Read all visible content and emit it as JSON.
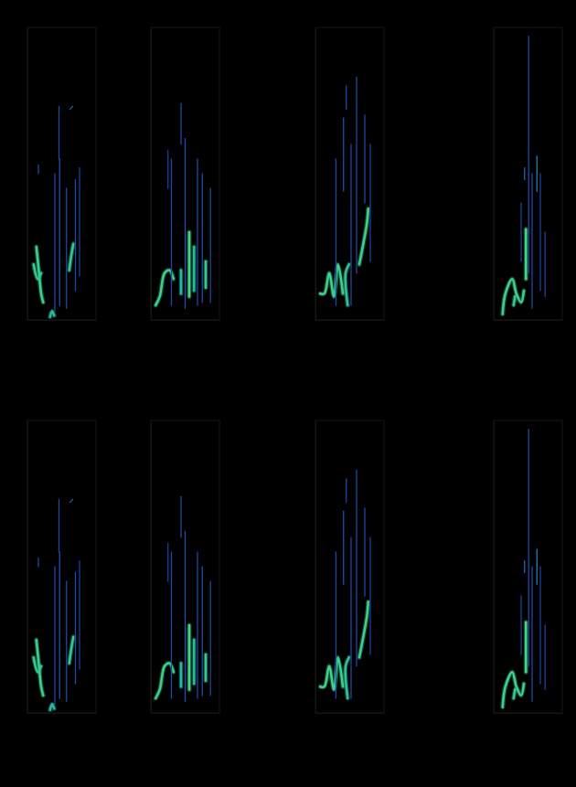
{
  "chart_data": [
    {
      "type": "spectrogram",
      "tick_labels": false,
      "xlim": [
        0,
        1
      ],
      "ylim": [
        0,
        1
      ],
      "zlim": [
        0,
        1
      ],
      "series": [
        {
          "x": [
            0.13,
            0.17,
            0.2,
            0.23
          ],
          "values": [
            0.25,
            0.16,
            0.09,
            0.06
          ],
          "intensity": 0.85
        },
        {
          "x": [
            0.09,
            0.15,
            0.2
          ],
          "values": [
            0.19,
            0.14,
            0.16
          ],
          "intensity": 0.8
        },
        {
          "x": [
            0.61,
            0.64,
            0.67
          ],
          "values": [
            0.17,
            0.22,
            0.26
          ],
          "intensity": 0.8
        },
        {
          "x": [
            0.33,
            0.36,
            0.39
          ],
          "values": [
            0.01,
            0.03,
            0.015
          ],
          "intensity": 0.7
        },
        {
          "x": [
            0.4,
            0.4
          ],
          "values": [
            0.03,
            0.5
          ],
          "intensity": 0.3
        },
        {
          "x": [
            0.47,
            0.47
          ],
          "values": [
            0.05,
            0.55
          ],
          "intensity": 0.35
        },
        {
          "x": [
            0.57,
            0.57
          ],
          "values": [
            0.04,
            0.45
          ],
          "intensity": 0.3
        },
        {
          "x": [
            0.7,
            0.7
          ],
          "values": [
            0.1,
            0.48
          ],
          "intensity": 0.3
        },
        {
          "x": [
            0.76,
            0.76
          ],
          "values": [
            0.15,
            0.52
          ],
          "intensity": 0.25
        },
        {
          "x": [
            0.46,
            0.46
          ],
          "values": [
            0.55,
            0.73
          ],
          "intensity": 0.3
        },
        {
          "x": [
            0.62,
            0.66
          ],
          "values": [
            0.72,
            0.73
          ],
          "intensity": 0.4
        },
        {
          "x": [
            0.16,
            0.16
          ],
          "values": [
            0.5,
            0.53
          ],
          "intensity": 0.3
        }
      ]
    },
    {
      "type": "spectrogram",
      "tick_labels": false,
      "xlim": [
        0,
        1
      ],
      "ylim": [
        0,
        1
      ],
      "zlim": [
        0,
        1
      ],
      "series": [
        {
          "x": [
            0.07,
            0.13,
            0.2,
            0.27,
            0.33
          ],
          "values": [
            0.05,
            0.08,
            0.16,
            0.17,
            0.14
          ],
          "intensity": 0.85
        },
        {
          "x": [
            0.56,
            0.56
          ],
          "values": [
            0.08,
            0.3
          ],
          "intensity": 0.9
        },
        {
          "x": [
            0.63,
            0.63
          ],
          "values": [
            0.1,
            0.25
          ],
          "intensity": 0.7
        },
        {
          "x": [
            0.8,
            0.8
          ],
          "values": [
            0.11,
            0.2
          ],
          "intensity": 0.8
        },
        {
          "x": [
            0.44,
            0.44
          ],
          "values": [
            0.09,
            0.17
          ],
          "intensity": 0.7
        },
        {
          "x": [
            0.3,
            0.3
          ],
          "values": [
            0.05,
            0.55
          ],
          "intensity": 0.3
        },
        {
          "x": [
            0.5,
            0.5
          ],
          "values": [
            0.04,
            0.62
          ],
          "intensity": 0.35
        },
        {
          "x": [
            0.68,
            0.68
          ],
          "values": [
            0.05,
            0.55
          ],
          "intensity": 0.3
        },
        {
          "x": [
            0.75,
            0.75
          ],
          "values": [
            0.06,
            0.5
          ],
          "intensity": 0.3
        },
        {
          "x": [
            0.87,
            0.87
          ],
          "values": [
            0.06,
            0.45
          ],
          "intensity": 0.25
        },
        {
          "x": [
            0.44,
            0.44
          ],
          "values": [
            0.6,
            0.74
          ],
          "intensity": 0.3
        },
        {
          "x": [
            0.25,
            0.25
          ],
          "values": [
            0.45,
            0.58
          ],
          "intensity": 0.25
        }
      ]
    },
    {
      "type": "spectrogram",
      "tick_labels": false,
      "xlim": [
        0,
        1
      ],
      "ylim": [
        0,
        1
      ],
      "zlim": [
        0,
        1
      ],
      "series": [
        {
          "x": [
            0.07,
            0.13,
            0.2,
            0.27,
            0.33,
            0.4
          ],
          "values": [
            0.09,
            0.09,
            0.16,
            0.08,
            0.19,
            0.09
          ],
          "intensity": 0.85
        },
        {
          "x": [
            0.47,
            0.44,
            0.49
          ],
          "values": [
            0.05,
            0.16,
            0.19
          ],
          "intensity": 0.75
        },
        {
          "x": [
            0.64,
            0.69,
            0.75,
            0.77
          ],
          "values": [
            0.19,
            0.25,
            0.33,
            0.38
          ],
          "intensity": 0.85
        },
        {
          "x": [
            0.6,
            0.6
          ],
          "values": [
            0.16,
            0.83
          ],
          "intensity": 0.3
        },
        {
          "x": [
            0.41,
            0.41
          ],
          "values": [
            0.44,
            0.69
          ],
          "intensity": 0.35
        },
        {
          "x": [
            0.3,
            0.3
          ],
          "values": [
            0.05,
            0.55
          ],
          "intensity": 0.3
        },
        {
          "x": [
            0.52,
            0.52
          ],
          "values": [
            0.05,
            0.6
          ],
          "intensity": 0.3
        },
        {
          "x": [
            0.72,
            0.72
          ],
          "values": [
            0.4,
            0.7
          ],
          "intensity": 0.3
        },
        {
          "x": [
            0.8,
            0.8
          ],
          "values": [
            0.2,
            0.6
          ],
          "intensity": 0.25
        },
        {
          "x": [
            0.45,
            0.45
          ],
          "values": [
            0.72,
            0.8
          ],
          "intensity": 0.3
        }
      ]
    },
    {
      "type": "spectrogram",
      "tick_labels": false,
      "xlim": [
        0,
        1
      ],
      "ylim": [
        0,
        1
      ],
      "zlim": [
        0,
        1
      ],
      "series": [
        {
          "x": [
            0.13,
            0.17,
            0.27,
            0.33,
            0.4,
            0.44
          ],
          "values": [
            0.02,
            0.09,
            0.14,
            0.09,
            0.06,
            0.1
          ],
          "intensity": 0.85
        },
        {
          "x": [
            0.47,
            0.47
          ],
          "values": [
            0.14,
            0.31
          ],
          "intensity": 0.9
        },
        {
          "x": [
            0.29,
            0.31
          ],
          "values": [
            0.05,
            0.08
          ],
          "intensity": 0.8
        },
        {
          "x": [
            0.51,
            0.51
          ],
          "values": [
            0.16,
            0.97
          ],
          "intensity": 0.3
        },
        {
          "x": [
            0.63,
            0.63
          ],
          "values": [
            0.44,
            0.56
          ],
          "intensity": 0.5
        },
        {
          "x": [
            0.56,
            0.56
          ],
          "values": [
            0.04,
            0.5
          ],
          "intensity": 0.3
        },
        {
          "x": [
            0.68,
            0.68
          ],
          "values": [
            0.1,
            0.5
          ],
          "intensity": 0.25
        },
        {
          "x": [
            0.75,
            0.75
          ],
          "values": [
            0.08,
            0.3
          ],
          "intensity": 0.25
        },
        {
          "x": [
            0.4,
            0.4
          ],
          "values": [
            0.2,
            0.4
          ],
          "intensity": 0.25
        },
        {
          "x": [
            0.45,
            0.45
          ],
          "values": [
            0.48,
            0.52
          ],
          "intensity": 0.4
        }
      ]
    },
    {
      "type": "spectrogram",
      "tick_labels": false,
      "xlim": [
        0,
        1
      ],
      "ylim": [
        0,
        1
      ],
      "zlim": [
        0,
        1
      ],
      "series": [
        {
          "x": [
            0.13,
            0.17,
            0.2,
            0.23
          ],
          "values": [
            0.25,
            0.16,
            0.09,
            0.06
          ],
          "intensity": 0.85
        },
        {
          "x": [
            0.09,
            0.15,
            0.2
          ],
          "values": [
            0.19,
            0.14,
            0.16
          ],
          "intensity": 0.8
        },
        {
          "x": [
            0.61,
            0.64,
            0.67
          ],
          "values": [
            0.17,
            0.22,
            0.26
          ],
          "intensity": 0.8
        },
        {
          "x": [
            0.33,
            0.36,
            0.39
          ],
          "values": [
            0.01,
            0.03,
            0.015
          ],
          "intensity": 0.7
        },
        {
          "x": [
            0.4,
            0.4
          ],
          "values": [
            0.03,
            0.5
          ],
          "intensity": 0.3
        },
        {
          "x": [
            0.47,
            0.47
          ],
          "values": [
            0.05,
            0.55
          ],
          "intensity": 0.35
        },
        {
          "x": [
            0.57,
            0.57
          ],
          "values": [
            0.04,
            0.45
          ],
          "intensity": 0.3
        },
        {
          "x": [
            0.7,
            0.7
          ],
          "values": [
            0.1,
            0.48
          ],
          "intensity": 0.3
        },
        {
          "x": [
            0.76,
            0.76
          ],
          "values": [
            0.15,
            0.52
          ],
          "intensity": 0.25
        },
        {
          "x": [
            0.46,
            0.46
          ],
          "values": [
            0.55,
            0.73
          ],
          "intensity": 0.3
        },
        {
          "x": [
            0.62,
            0.66
          ],
          "values": [
            0.72,
            0.73
          ],
          "intensity": 0.4
        },
        {
          "x": [
            0.16,
            0.16
          ],
          "values": [
            0.5,
            0.53
          ],
          "intensity": 0.3
        }
      ]
    },
    {
      "type": "spectrogram",
      "tick_labels": false,
      "xlim": [
        0,
        1
      ],
      "ylim": [
        0,
        1
      ],
      "zlim": [
        0,
        1
      ],
      "series": [
        {
          "x": [
            0.07,
            0.13,
            0.2,
            0.27,
            0.33
          ],
          "values": [
            0.05,
            0.08,
            0.16,
            0.17,
            0.14
          ],
          "intensity": 0.85
        },
        {
          "x": [
            0.56,
            0.56
          ],
          "values": [
            0.08,
            0.3
          ],
          "intensity": 0.9
        },
        {
          "x": [
            0.63,
            0.63
          ],
          "values": [
            0.1,
            0.25
          ],
          "intensity": 0.7
        },
        {
          "x": [
            0.8,
            0.8
          ],
          "values": [
            0.11,
            0.2
          ],
          "intensity": 0.8
        },
        {
          "x": [
            0.44,
            0.44
          ],
          "values": [
            0.09,
            0.17
          ],
          "intensity": 0.7
        },
        {
          "x": [
            0.3,
            0.3
          ],
          "values": [
            0.05,
            0.55
          ],
          "intensity": 0.3
        },
        {
          "x": [
            0.5,
            0.5
          ],
          "values": [
            0.04,
            0.62
          ],
          "intensity": 0.35
        },
        {
          "x": [
            0.68,
            0.68
          ],
          "values": [
            0.05,
            0.55
          ],
          "intensity": 0.3
        },
        {
          "x": [
            0.75,
            0.75
          ],
          "values": [
            0.06,
            0.5
          ],
          "intensity": 0.3
        },
        {
          "x": [
            0.87,
            0.87
          ],
          "values": [
            0.06,
            0.45
          ],
          "intensity": 0.25
        },
        {
          "x": [
            0.44,
            0.44
          ],
          "values": [
            0.6,
            0.74
          ],
          "intensity": 0.3
        },
        {
          "x": [
            0.25,
            0.25
          ],
          "values": [
            0.45,
            0.58
          ],
          "intensity": 0.25
        }
      ]
    },
    {
      "type": "spectrogram",
      "tick_labels": false,
      "xlim": [
        0,
        1
      ],
      "ylim": [
        0,
        1
      ],
      "zlim": [
        0,
        1
      ],
      "series": [
        {
          "x": [
            0.07,
            0.13,
            0.2,
            0.27,
            0.33,
            0.4
          ],
          "values": [
            0.09,
            0.09,
            0.16,
            0.08,
            0.19,
            0.09
          ],
          "intensity": 0.85
        },
        {
          "x": [
            0.47,
            0.44,
            0.49
          ],
          "values": [
            0.05,
            0.16,
            0.19
          ],
          "intensity": 0.75
        },
        {
          "x": [
            0.64,
            0.69,
            0.75,
            0.77
          ],
          "values": [
            0.19,
            0.25,
            0.33,
            0.38
          ],
          "intensity": 0.85
        },
        {
          "x": [
            0.6,
            0.6
          ],
          "values": [
            0.16,
            0.83
          ],
          "intensity": 0.3
        },
        {
          "x": [
            0.41,
            0.41
          ],
          "values": [
            0.44,
            0.69
          ],
          "intensity": 0.35
        },
        {
          "x": [
            0.3,
            0.3
          ],
          "values": [
            0.05,
            0.55
          ],
          "intensity": 0.3
        },
        {
          "x": [
            0.52,
            0.52
          ],
          "values": [
            0.05,
            0.6
          ],
          "intensity": 0.3
        },
        {
          "x": [
            0.72,
            0.72
          ],
          "values": [
            0.4,
            0.7
          ],
          "intensity": 0.3
        },
        {
          "x": [
            0.8,
            0.8
          ],
          "values": [
            0.2,
            0.6
          ],
          "intensity": 0.25
        },
        {
          "x": [
            0.45,
            0.45
          ],
          "values": [
            0.72,
            0.8
          ],
          "intensity": 0.3
        }
      ]
    },
    {
      "type": "spectrogram",
      "tick_labels": false,
      "xlim": [
        0,
        1
      ],
      "ylim": [
        0,
        1
      ],
      "zlim": [
        0,
        1
      ],
      "series": [
        {
          "x": [
            0.13,
            0.17,
            0.27,
            0.33,
            0.4,
            0.44
          ],
          "values": [
            0.02,
            0.09,
            0.14,
            0.09,
            0.06,
            0.1
          ],
          "intensity": 0.85
        },
        {
          "x": [
            0.47,
            0.47
          ],
          "values": [
            0.14,
            0.31
          ],
          "intensity": 0.9
        },
        {
          "x": [
            0.29,
            0.31
          ],
          "values": [
            0.05,
            0.08
          ],
          "intensity": 0.8
        },
        {
          "x": [
            0.51,
            0.51
          ],
          "values": [
            0.16,
            0.97
          ],
          "intensity": 0.3
        },
        {
          "x": [
            0.63,
            0.63
          ],
          "values": [
            0.44,
            0.56
          ],
          "intensity": 0.5
        },
        {
          "x": [
            0.56,
            0.56
          ],
          "values": [
            0.04,
            0.5
          ],
          "intensity": 0.3
        },
        {
          "x": [
            0.68,
            0.68
          ],
          "values": [
            0.1,
            0.5
          ],
          "intensity": 0.25
        },
        {
          "x": [
            0.75,
            0.75
          ],
          "values": [
            0.08,
            0.3
          ],
          "intensity": 0.25
        },
        {
          "x": [
            0.4,
            0.4
          ],
          "values": [
            0.2,
            0.4
          ],
          "intensity": 0.25
        },
        {
          "x": [
            0.45,
            0.45
          ],
          "values": [
            0.48,
            0.52
          ],
          "intensity": 0.4
        }
      ]
    }
  ]
}
